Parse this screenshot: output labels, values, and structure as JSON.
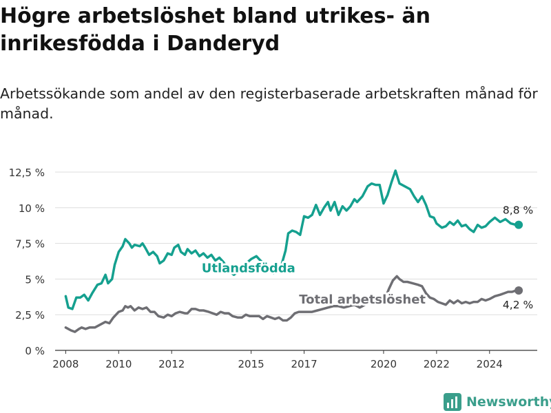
{
  "title": "Högre arbetslöshet bland utrikes- än inrikesfödda i Danderyd",
  "subtitle": "Arbetssökande som andel av den registerbaserade arbetskraften månad för månad.",
  "brand": {
    "name": "Newsworthy",
    "icon": "bar-chart-icon",
    "color": "#3a9e8b"
  },
  "chart_data": {
    "type": "line",
    "title": "",
    "xlabel": "",
    "ylabel": "",
    "xlim": [
      2007.6,
      2025.8
    ],
    "ylim": [
      0,
      12.5
    ],
    "grid": "horizontal",
    "legend": "inline",
    "y_ticks": [
      {
        "value": 0,
        "label": "0 %"
      },
      {
        "value": 2.5,
        "label": "2,5 %"
      },
      {
        "value": 5,
        "label": "5 %"
      },
      {
        "value": 7.5,
        "label": "7,5 %"
      },
      {
        "value": 10,
        "label": "10 %"
      },
      {
        "value": 12.5,
        "label": "12,5 %"
      }
    ],
    "x_ticks": [
      {
        "value": 2008,
        "label": "2008"
      },
      {
        "value": 2010,
        "label": "2010"
      },
      {
        "value": 2012,
        "label": "2012"
      },
      {
        "value": 2015,
        "label": "2015"
      },
      {
        "value": 2017,
        "label": "2017"
      },
      {
        "value": 2020,
        "label": "2020"
      },
      {
        "value": 2022,
        "label": "2022"
      },
      {
        "value": 2024,
        "label": "2024"
      }
    ],
    "series": [
      {
        "name": "Utlandsfödda",
        "color": "#15a08f",
        "end_label": "8,8 %",
        "points": [
          [
            2008.0,
            3.8
          ],
          [
            2008.1,
            3.0
          ],
          [
            2008.25,
            2.9
          ],
          [
            2008.4,
            3.7
          ],
          [
            2008.55,
            3.7
          ],
          [
            2008.7,
            3.9
          ],
          [
            2008.85,
            3.5
          ],
          [
            2009.0,
            4.0
          ],
          [
            2009.2,
            4.6
          ],
          [
            2009.35,
            4.7
          ],
          [
            2009.5,
            5.3
          ],
          [
            2009.6,
            4.7
          ],
          [
            2009.75,
            5.0
          ],
          [
            2009.85,
            6.0
          ],
          [
            2010.0,
            6.9
          ],
          [
            2010.15,
            7.3
          ],
          [
            2010.25,
            7.8
          ],
          [
            2010.4,
            7.5
          ],
          [
            2010.5,
            7.2
          ],
          [
            2010.6,
            7.4
          ],
          [
            2010.8,
            7.3
          ],
          [
            2010.9,
            7.5
          ],
          [
            2011.0,
            7.2
          ],
          [
            2011.15,
            6.7
          ],
          [
            2011.3,
            6.9
          ],
          [
            2011.45,
            6.6
          ],
          [
            2011.55,
            6.1
          ],
          [
            2011.7,
            6.3
          ],
          [
            2011.85,
            6.8
          ],
          [
            2012.0,
            6.7
          ],
          [
            2012.1,
            7.2
          ],
          [
            2012.25,
            7.4
          ],
          [
            2012.35,
            6.9
          ],
          [
            2012.5,
            6.7
          ],
          [
            2012.6,
            7.1
          ],
          [
            2012.75,
            6.8
          ],
          [
            2012.9,
            7.0
          ],
          [
            2013.05,
            6.6
          ],
          [
            2013.2,
            6.8
          ],
          [
            2013.35,
            6.5
          ],
          [
            2013.5,
            6.7
          ],
          [
            2013.65,
            6.3
          ],
          [
            2013.8,
            6.5
          ],
          [
            2013.95,
            6.2
          ],
          [
            2014.1,
            5.8
          ],
          [
            2014.2,
            5.5
          ],
          [
            2014.35,
            5.3
          ],
          [
            2014.5,
            5.5
          ],
          [
            2014.6,
            5.7
          ],
          [
            2014.75,
            6.0
          ],
          [
            2015.0,
            6.4
          ],
          [
            2015.2,
            6.6
          ],
          [
            2015.35,
            6.3
          ],
          [
            2015.55,
            6.0
          ],
          [
            2015.7,
            5.7
          ],
          [
            2015.85,
            5.4
          ],
          [
            2016.0,
            5.6
          ],
          [
            2016.15,
            6.0
          ],
          [
            2016.3,
            7.0
          ],
          [
            2016.4,
            8.2
          ],
          [
            2016.55,
            8.4
          ],
          [
            2016.7,
            8.3
          ],
          [
            2016.85,
            8.1
          ],
          [
            2017.0,
            9.4
          ],
          [
            2017.15,
            9.3
          ],
          [
            2017.3,
            9.5
          ],
          [
            2017.45,
            10.2
          ],
          [
            2017.6,
            9.5
          ],
          [
            2017.75,
            10.0
          ],
          [
            2017.9,
            10.4
          ],
          [
            2018.0,
            9.8
          ],
          [
            2018.15,
            10.4
          ],
          [
            2018.3,
            9.5
          ],
          [
            2018.45,
            10.1
          ],
          [
            2018.6,
            9.8
          ],
          [
            2018.75,
            10.1
          ],
          [
            2018.9,
            10.6
          ],
          [
            2019.0,
            10.4
          ],
          [
            2019.2,
            10.8
          ],
          [
            2019.4,
            11.5
          ],
          [
            2019.55,
            11.7
          ],
          [
            2019.7,
            11.6
          ],
          [
            2019.85,
            11.6
          ],
          [
            2020.0,
            10.3
          ],
          [
            2020.15,
            10.9
          ],
          [
            2020.3,
            11.8
          ],
          [
            2020.45,
            12.6
          ],
          [
            2020.6,
            11.7
          ],
          [
            2020.8,
            11.5
          ],
          [
            2021.0,
            11.3
          ],
          [
            2021.15,
            10.8
          ],
          [
            2021.3,
            10.4
          ],
          [
            2021.45,
            10.8
          ],
          [
            2021.6,
            10.2
          ],
          [
            2021.75,
            9.4
          ],
          [
            2021.9,
            9.3
          ],
          [
            2022.0,
            8.9
          ],
          [
            2022.2,
            8.6
          ],
          [
            2022.35,
            8.7
          ],
          [
            2022.5,
            9.0
          ],
          [
            2022.65,
            8.8
          ],
          [
            2022.8,
            9.1
          ],
          [
            2022.95,
            8.7
          ],
          [
            2023.1,
            8.8
          ],
          [
            2023.25,
            8.5
          ],
          [
            2023.4,
            8.3
          ],
          [
            2023.55,
            8.8
          ],
          [
            2023.7,
            8.6
          ],
          [
            2023.85,
            8.7
          ],
          [
            2024.0,
            9.0
          ],
          [
            2024.2,
            9.3
          ],
          [
            2024.4,
            9.0
          ],
          [
            2024.6,
            9.2
          ],
          [
            2024.8,
            8.9
          ],
          [
            2025.0,
            8.8
          ],
          [
            2025.1,
            8.8
          ]
        ]
      },
      {
        "name": "Total arbetslöshet",
        "color": "#6e6e73",
        "end_label": "4,2 %",
        "points": [
          [
            2008.0,
            1.6
          ],
          [
            2008.2,
            1.4
          ],
          [
            2008.35,
            1.3
          ],
          [
            2008.5,
            1.5
          ],
          [
            2008.6,
            1.6
          ],
          [
            2008.75,
            1.5
          ],
          [
            2008.9,
            1.6
          ],
          [
            2009.1,
            1.6
          ],
          [
            2009.3,
            1.8
          ],
          [
            2009.5,
            2.0
          ],
          [
            2009.65,
            1.9
          ],
          [
            2009.8,
            2.3
          ],
          [
            2010.0,
            2.7
          ],
          [
            2010.15,
            2.8
          ],
          [
            2010.25,
            3.1
          ],
          [
            2010.35,
            3.0
          ],
          [
            2010.45,
            3.1
          ],
          [
            2010.6,
            2.8
          ],
          [
            2010.75,
            3.0
          ],
          [
            2010.9,
            2.9
          ],
          [
            2011.05,
            3.0
          ],
          [
            2011.2,
            2.7
          ],
          [
            2011.35,
            2.7
          ],
          [
            2011.5,
            2.4
          ],
          [
            2011.7,
            2.3
          ],
          [
            2011.85,
            2.5
          ],
          [
            2012.0,
            2.4
          ],
          [
            2012.15,
            2.6
          ],
          [
            2012.3,
            2.7
          ],
          [
            2012.5,
            2.6
          ],
          [
            2012.6,
            2.6
          ],
          [
            2012.75,
            2.9
          ],
          [
            2012.9,
            2.9
          ],
          [
            2013.05,
            2.8
          ],
          [
            2013.2,
            2.8
          ],
          [
            2013.4,
            2.7
          ],
          [
            2013.55,
            2.6
          ],
          [
            2013.7,
            2.5
          ],
          [
            2013.85,
            2.7
          ],
          [
            2014.0,
            2.6
          ],
          [
            2014.15,
            2.6
          ],
          [
            2014.3,
            2.4
          ],
          [
            2014.5,
            2.3
          ],
          [
            2014.65,
            2.3
          ],
          [
            2014.8,
            2.5
          ],
          [
            2014.95,
            2.4
          ],
          [
            2015.1,
            2.4
          ],
          [
            2015.3,
            2.4
          ],
          [
            2015.45,
            2.2
          ],
          [
            2015.6,
            2.4
          ],
          [
            2015.75,
            2.3
          ],
          [
            2015.9,
            2.2
          ],
          [
            2016.05,
            2.3
          ],
          [
            2016.2,
            2.1
          ],
          [
            2016.35,
            2.1
          ],
          [
            2016.5,
            2.3
          ],
          [
            2016.65,
            2.6
          ],
          [
            2016.8,
            2.7
          ],
          [
            2017.0,
            2.7
          ],
          [
            2017.15,
            2.7
          ],
          [
            2017.3,
            2.7
          ],
          [
            2017.5,
            2.8
          ],
          [
            2017.7,
            2.9
          ],
          [
            2017.9,
            3.0
          ],
          [
            2018.1,
            3.1
          ],
          [
            2018.3,
            3.1
          ],
          [
            2018.5,
            3.0
          ],
          [
            2018.7,
            3.1
          ],
          [
            2018.9,
            3.2
          ],
          [
            2019.1,
            3.0
          ],
          [
            2019.3,
            3.2
          ],
          [
            2019.5,
            3.4
          ],
          [
            2019.7,
            3.5
          ],
          [
            2019.9,
            3.4
          ],
          [
            2020.05,
            3.6
          ],
          [
            2020.2,
            4.3
          ],
          [
            2020.35,
            4.9
          ],
          [
            2020.5,
            5.2
          ],
          [
            2020.6,
            5.0
          ],
          [
            2020.75,
            4.8
          ],
          [
            2020.9,
            4.8
          ],
          [
            2021.1,
            4.7
          ],
          [
            2021.3,
            4.6
          ],
          [
            2021.45,
            4.5
          ],
          [
            2021.6,
            4.0
          ],
          [
            2021.75,
            3.7
          ],
          [
            2021.9,
            3.6
          ],
          [
            2022.05,
            3.4
          ],
          [
            2022.2,
            3.3
          ],
          [
            2022.35,
            3.2
          ],
          [
            2022.5,
            3.5
          ],
          [
            2022.65,
            3.3
          ],
          [
            2022.8,
            3.5
          ],
          [
            2022.95,
            3.3
          ],
          [
            2023.1,
            3.4
          ],
          [
            2023.25,
            3.3
          ],
          [
            2023.4,
            3.4
          ],
          [
            2023.55,
            3.4
          ],
          [
            2023.7,
            3.6
          ],
          [
            2023.85,
            3.5
          ],
          [
            2024.0,
            3.6
          ],
          [
            2024.2,
            3.8
          ],
          [
            2024.4,
            3.9
          ],
          [
            2024.55,
            4.0
          ],
          [
            2024.7,
            4.1
          ],
          [
            2024.85,
            4.1
          ],
          [
            2025.0,
            4.2
          ],
          [
            2025.1,
            4.2
          ]
        ]
      }
    ]
  }
}
